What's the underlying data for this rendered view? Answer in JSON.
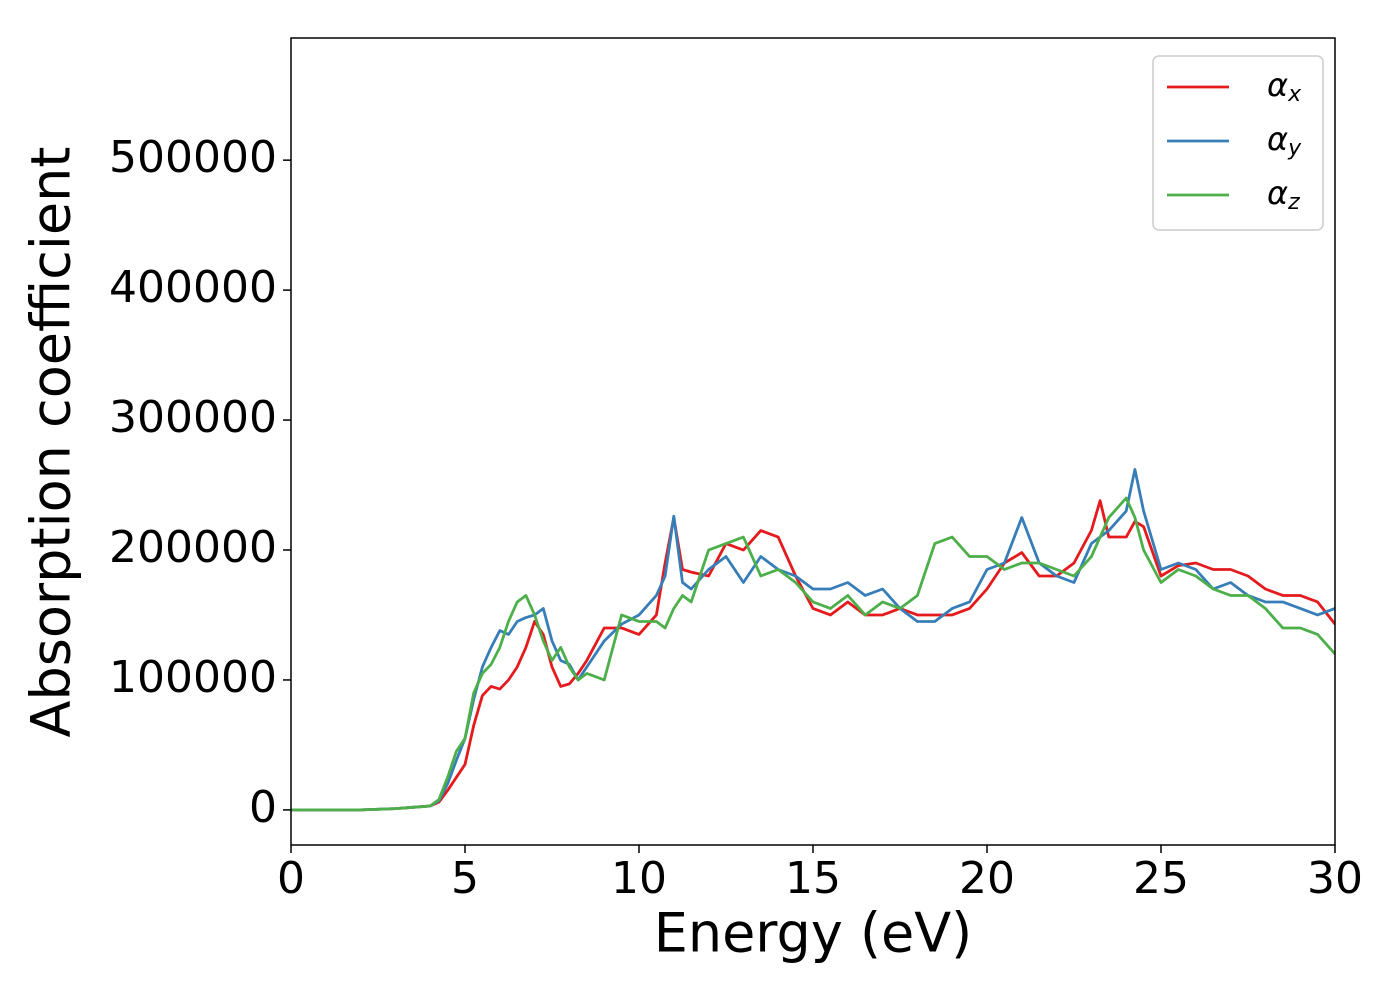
{
  "chart_data": {
    "type": "line",
    "xlabel": "Energy (eV)",
    "ylabel": "Absorption coefficient",
    "x": [
      0,
      1,
      2,
      3,
      3.5,
      4,
      4.25,
      4.5,
      4.75,
      5,
      5.25,
      5.5,
      5.75,
      6,
      6.25,
      6.5,
      6.75,
      7,
      7.25,
      7.5,
      7.75,
      8,
      8.25,
      8.5,
      9,
      9.5,
      10,
      10.5,
      10.75,
      11,
      11.25,
      11.5,
      12,
      12.5,
      13,
      13.5,
      14,
      14.5,
      15,
      15.5,
      16,
      16.5,
      17,
      17.5,
      18,
      18.5,
      19,
      19.5,
      20,
      20.5,
      21,
      21.5,
      22,
      22.5,
      23,
      23.25,
      23.5,
      24,
      24.25,
      24.5,
      25,
      25.5,
      26,
      26.5,
      27,
      27.5,
      28,
      28.5,
      29,
      29.5,
      30
    ],
    "series": [
      {
        "name": "αx",
        "color": "#e41a1c",
        "values": [
          0,
          0,
          0,
          1000,
          2000,
          3000,
          6000,
          15000,
          25000,
          35000,
          65000,
          88000,
          95000,
          93000,
          100000,
          110000,
          125000,
          145000,
          135000,
          110000,
          95000,
          97000,
          105000,
          115000,
          140000,
          140000,
          135000,
          150000,
          190000,
          225000,
          185000,
          183000,
          180000,
          205000,
          200000,
          215000,
          210000,
          180000,
          155000,
          150000,
          160000,
          150000,
          150000,
          155000,
          150000,
          150000,
          150000,
          155000,
          170000,
          190000,
          198000,
          180000,
          180000,
          190000,
          215000,
          238000,
          210000,
          210000,
          222000,
          218000,
          180000,
          188000,
          190000,
          185000,
          185000,
          180000,
          170000,
          165000,
          165000,
          160000,
          143000
        ]
      },
      {
        "name": "αy",
        "color": "#377eb8",
        "values": [
          0,
          0,
          0,
          1000,
          2000,
          3000,
          7000,
          20000,
          38000,
          55000,
          85000,
          110000,
          125000,
          138000,
          135000,
          145000,
          148000,
          150000,
          155000,
          130000,
          115000,
          112000,
          100000,
          110000,
          130000,
          143000,
          150000,
          165000,
          180000,
          226000,
          175000,
          170000,
          185000,
          195000,
          175000,
          195000,
          185000,
          180000,
          170000,
          170000,
          175000,
          165000,
          170000,
          155000,
          145000,
          145000,
          155000,
          160000,
          185000,
          190000,
          225000,
          190000,
          180000,
          175000,
          205000,
          210000,
          215000,
          230000,
          262000,
          230000,
          185000,
          190000,
          185000,
          170000,
          175000,
          165000,
          160000,
          160000,
          155000,
          150000,
          155000
        ]
      },
      {
        "name": "αz",
        "color": "#4daf4a",
        "values": [
          0,
          0,
          0,
          1000,
          2000,
          3000,
          8000,
          25000,
          45000,
          55000,
          90000,
          105000,
          112000,
          125000,
          145000,
          160000,
          165000,
          150000,
          130000,
          115000,
          125000,
          110000,
          100000,
          105000,
          100000,
          150000,
          145000,
          145000,
          140000,
          155000,
          165000,
          160000,
          200000,
          205000,
          210000,
          180000,
          185000,
          175000,
          160000,
          155000,
          165000,
          150000,
          160000,
          155000,
          165000,
          205000,
          210000,
          195000,
          195000,
          185000,
          190000,
          190000,
          185000,
          180000,
          195000,
          210000,
          225000,
          240000,
          225000,
          200000,
          175000,
          185000,
          180000,
          170000,
          165000,
          165000,
          155000,
          140000,
          140000,
          135000,
          120000
        ]
      }
    ],
    "xlim": [
      0,
      30
    ],
    "xticks": [
      0,
      5,
      10,
      15,
      20,
      25,
      30
    ],
    "ylim": [
      -27000,
      594000
    ],
    "yticks": [
      0,
      100000,
      200000,
      300000,
      400000,
      500000
    ],
    "legend": "upper right",
    "grid": false
  }
}
